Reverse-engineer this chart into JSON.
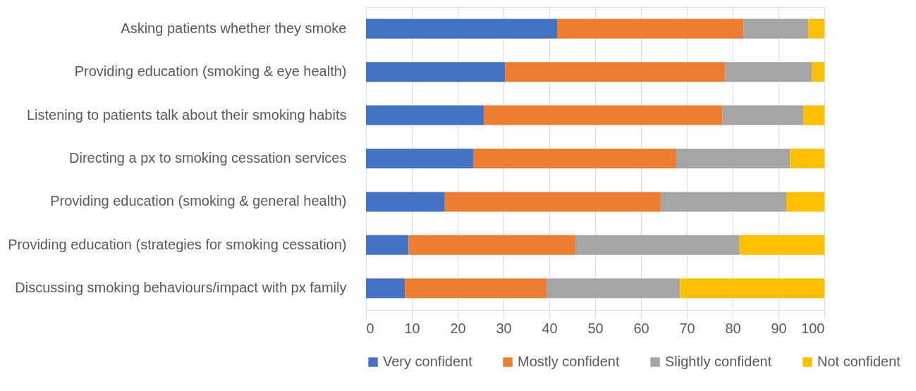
{
  "chart_data": {
    "type": "bar",
    "orientation": "horizontal",
    "stacked": true,
    "categories": [
      "Asking patients whether they smoke",
      "Providing education (smoking & eye health)",
      "Listening to patients talk about their smoking habits",
      "Directing a px to smoking cessation services",
      "Providing education (smoking & general health)",
      "Providing education (strategies for smoking cessation)",
      "Discussing smoking behaviours/impact with px family"
    ],
    "series": [
      {
        "name": "Very confident",
        "color": "#4472c4",
        "values": [
          41.7,
          30.4,
          25.7,
          23.5,
          17.2,
          9.3,
          8.5
        ]
      },
      {
        "name": "Mostly confident",
        "color": "#ed7d31",
        "values": [
          40.7,
          48.0,
          52.1,
          44.2,
          47.2,
          36.4,
          30.9
        ]
      },
      {
        "name": "Slightly confident",
        "color": "#a5a5a5",
        "values": [
          14.1,
          18.9,
          17.6,
          24.8,
          27.3,
          35.8,
          29.1
        ]
      },
      {
        "name": "Not confident",
        "color": "#ffc000",
        "values": [
          3.5,
          2.7,
          4.6,
          7.5,
          8.3,
          18.5,
          31.5
        ]
      }
    ],
    "xlim": [
      0,
      100
    ],
    "xticks": [
      0,
      10,
      20,
      30,
      40,
      50,
      60,
      70,
      80,
      90,
      100
    ],
    "grid": "x",
    "legend": "bottom"
  }
}
